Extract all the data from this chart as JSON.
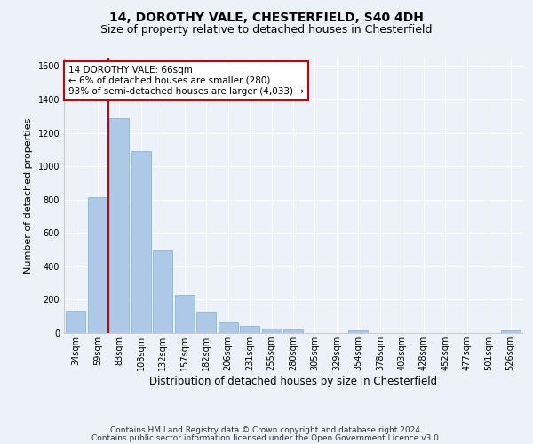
{
  "title1": "14, DOROTHY VALE, CHESTERFIELD, S40 4DH",
  "title2": "Size of property relative to detached houses in Chesterfield",
  "xlabel": "Distribution of detached houses by size in Chesterfield",
  "ylabel": "Number of detached properties",
  "categories": [
    "34sqm",
    "59sqm",
    "83sqm",
    "108sqm",
    "132sqm",
    "157sqm",
    "182sqm",
    "206sqm",
    "231sqm",
    "255sqm",
    "280sqm",
    "305sqm",
    "329sqm",
    "354sqm",
    "378sqm",
    "403sqm",
    "428sqm",
    "452sqm",
    "477sqm",
    "501sqm",
    "526sqm"
  ],
  "values": [
    135,
    815,
    1290,
    1090,
    495,
    230,
    130,
    65,
    40,
    27,
    20,
    0,
    0,
    17,
    0,
    0,
    0,
    0,
    0,
    0,
    17
  ],
  "bar_color": "#aec9e8",
  "bar_edge_color": "#7aafd4",
  "vline_color": "#cc0000",
  "vline_pos": 1.5,
  "ylim": [
    0,
    1650
  ],
  "yticks": [
    0,
    200,
    400,
    600,
    800,
    1000,
    1200,
    1400,
    1600
  ],
  "annotation_text": "14 DOROTHY VALE: 66sqm\n← 6% of detached houses are smaller (280)\n93% of semi-detached houses are larger (4,033) →",
  "annotation_box_color": "#ffffff",
  "annotation_box_edge": "#cc0000",
  "footer1": "Contains HM Land Registry data © Crown copyright and database right 2024.",
  "footer2": "Contains public sector information licensed under the Open Government Licence v3.0.",
  "bg_color": "#edf2f9",
  "plot_bg_color": "#edf2f9",
  "grid_color": "#ffffff",
  "title1_fontsize": 10,
  "title2_fontsize": 9,
  "xlabel_fontsize": 8.5,
  "ylabel_fontsize": 8,
  "tick_fontsize": 7,
  "annot_fontsize": 7.5,
  "footer_fontsize": 6.5
}
